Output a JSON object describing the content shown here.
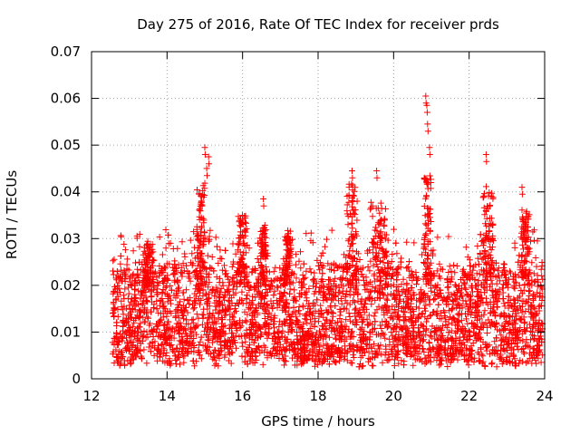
{
  "chart_data": {
    "type": "scatter",
    "title": "Day 275 of 2016, Rate Of TEC Index for receiver prds",
    "xlabel": "GPS time / hours",
    "ylabel": "ROTI / TECUs",
    "xlim": [
      12,
      24
    ],
    "ylim": [
      0,
      0.07
    ],
    "x_ticks": [
      12,
      14,
      16,
      18,
      20,
      22,
      24
    ],
    "x_tick_labels": [
      "12",
      "14",
      "16",
      "18",
      "20",
      "22",
      "24"
    ],
    "y_ticks": [
      0,
      0.01,
      0.02,
      0.03,
      0.04,
      0.05,
      0.06,
      0.07
    ],
    "y_tick_labels": [
      "0",
      "0.01",
      "0.02",
      "0.03",
      "0.04",
      "0.05",
      "0.06",
      "0.07"
    ],
    "grid": true,
    "marker": "+",
    "marker_color": "#ff0000",
    "x_range_of_points": [
      12.55,
      23.95
    ],
    "typical_range": [
      0.004,
      0.024
    ],
    "series": [
      {
        "name": "ROTI",
        "notable_points": [
          {
            "x": 15.0,
            "y": 0.0495
          },
          {
            "x": 15.05,
            "y": 0.045
          },
          {
            "x": 15.1,
            "y": 0.0475
          },
          {
            "x": 16.55,
            "y": 0.0385
          },
          {
            "x": 18.9,
            "y": 0.0445
          },
          {
            "x": 19.55,
            "y": 0.0445
          },
          {
            "x": 20.85,
            "y": 0.0605
          },
          {
            "x": 20.88,
            "y": 0.0585
          },
          {
            "x": 20.9,
            "y": 0.0545
          },
          {
            "x": 20.95,
            "y": 0.0495
          },
          {
            "x": 22.45,
            "y": 0.048
          },
          {
            "x": 23.4,
            "y": 0.041
          }
        ],
        "bursts": [
          {
            "x_center": 13.5,
            "width": 0.3,
            "peak": 0.029
          },
          {
            "x_center": 14.9,
            "width": 0.25,
            "peak": 0.042
          },
          {
            "x_center": 16.0,
            "width": 0.25,
            "peak": 0.035
          },
          {
            "x_center": 16.55,
            "width": 0.15,
            "peak": 0.033
          },
          {
            "x_center": 17.2,
            "width": 0.2,
            "peak": 0.032
          },
          {
            "x_center": 18.9,
            "width": 0.3,
            "peak": 0.042
          },
          {
            "x_center": 19.6,
            "width": 0.5,
            "peak": 0.038
          },
          {
            "x_center": 20.9,
            "width": 0.2,
            "peak": 0.045
          },
          {
            "x_center": 22.5,
            "width": 0.3,
            "peak": 0.042
          },
          {
            "x_center": 23.5,
            "width": 0.25,
            "peak": 0.037
          }
        ]
      }
    ]
  }
}
